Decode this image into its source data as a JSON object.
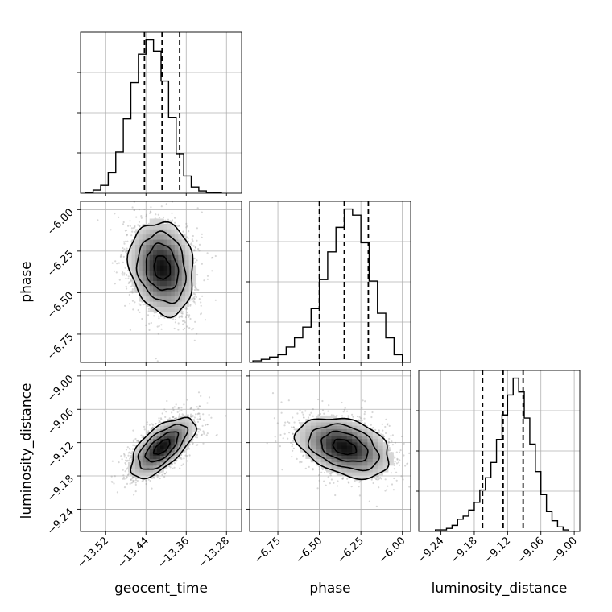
{
  "chart_data": {
    "type": "corner",
    "parameters": [
      "geocent_time",
      "phase",
      "luminosity_distance"
    ],
    "axes": {
      "geocent_time": {
        "range": [
          -13.57,
          -13.25
        ],
        "ticks": [
          -13.52,
          -13.44,
          -13.36,
          -13.28
        ],
        "tick_labels": [
          "−13.52",
          "−13.44",
          "−13.36",
          "−13.28"
        ]
      },
      "phase": {
        "range": [
          -6.92,
          -5.95
        ],
        "ticks": [
          -6.75,
          -6.5,
          -6.25,
          -6.0
        ],
        "tick_labels": [
          "−6.75",
          "−6.50",
          "−6.25",
          "−6.00"
        ]
      },
      "luminosity_distance": {
        "range": [
          -9.28,
          -8.99
        ],
        "ticks": [
          -9.24,
          -9.18,
          -9.12,
          -9.06,
          -9.0
        ],
        "tick_labels": [
          "−9.24",
          "−9.18",
          "−9.12",
          "−9.06",
          "−9.00"
        ]
      }
    },
    "marginals": [
      {
        "parameter": "geocent_time",
        "bin_edges": [
          -13.56,
          -13.545,
          -13.53,
          -13.515,
          -13.5,
          -13.485,
          -13.47,
          -13.455,
          -13.44,
          -13.425,
          -13.41,
          -13.395,
          -13.38,
          -13.365,
          -13.35,
          -13.335,
          -13.32,
          -13.305,
          -13.29
        ],
        "counts": [
          0.005,
          0.02,
          0.05,
          0.13,
          0.26,
          0.47,
          0.7,
          0.88,
          0.97,
          0.9,
          0.71,
          0.48,
          0.25,
          0.11,
          0.04,
          0.015,
          0.005,
          0.002
        ],
        "quantiles": [
          -13.443,
          -13.408,
          -13.373
        ]
      },
      {
        "parameter": "phase",
        "bin_edges": [
          -6.9,
          -6.85,
          -6.8,
          -6.75,
          -6.7,
          -6.65,
          -6.6,
          -6.55,
          -6.5,
          -6.45,
          -6.4,
          -6.35,
          -6.3,
          -6.25,
          -6.2,
          -6.15,
          -6.1,
          -6.05,
          -6.0
        ],
        "counts": [
          0.01,
          0.02,
          0.035,
          0.05,
          0.1,
          0.16,
          0.23,
          0.35,
          0.54,
          0.72,
          0.88,
          1.0,
          0.96,
          0.78,
          0.53,
          0.32,
          0.16,
          0.05
        ],
        "quantiles": [
          -6.5,
          -6.35,
          -6.205
        ]
      },
      {
        "parameter": "luminosity_distance",
        "bin_edges": [
          -9.27,
          -9.26,
          -9.25,
          -9.24,
          -9.23,
          -9.22,
          -9.21,
          -9.2,
          -9.19,
          -9.18,
          -9.17,
          -9.16,
          -9.15,
          -9.14,
          -9.13,
          -9.12,
          -9.11,
          -9.1,
          -9.09,
          -9.08,
          -9.07,
          -9.06,
          -9.05,
          -9.04,
          -9.03,
          -9.02,
          -9.01,
          -9.0
        ],
        "counts": [
          0.0,
          0.0,
          0.01,
          0.01,
          0.02,
          0.04,
          0.08,
          0.1,
          0.14,
          0.19,
          0.27,
          0.35,
          0.45,
          0.6,
          0.76,
          0.89,
          1.0,
          0.91,
          0.74,
          0.57,
          0.39,
          0.24,
          0.13,
          0.07,
          0.03,
          0.01,
          0.0
        ],
        "quantiles": [
          -9.165,
          -9.128,
          -9.092
        ]
      }
    ],
    "pairs": [
      {
        "x": "geocent_time",
        "y": "phase",
        "center": [
          -13.408,
          -6.35
        ],
        "spread": [
          0.032,
          0.14
        ],
        "correlation": -0.15
      },
      {
        "x": "geocent_time",
        "y": "luminosity_distance",
        "center": [
          -13.408,
          -9.128
        ],
        "spread": [
          0.032,
          0.027
        ],
        "correlation": 0.65
      },
      {
        "x": "phase",
        "y": "luminosity_distance",
        "center": [
          -6.35,
          -9.128
        ],
        "spread": [
          0.14,
          0.027
        ],
        "correlation": -0.35
      }
    ],
    "contour_levels_sigma": [
      0.5,
      1.0,
      1.5,
      2.0
    ],
    "grid": true,
    "colors": {
      "line": "#000000",
      "grid": "#b0b0b0",
      "scatter": "#8c8c8c"
    }
  }
}
